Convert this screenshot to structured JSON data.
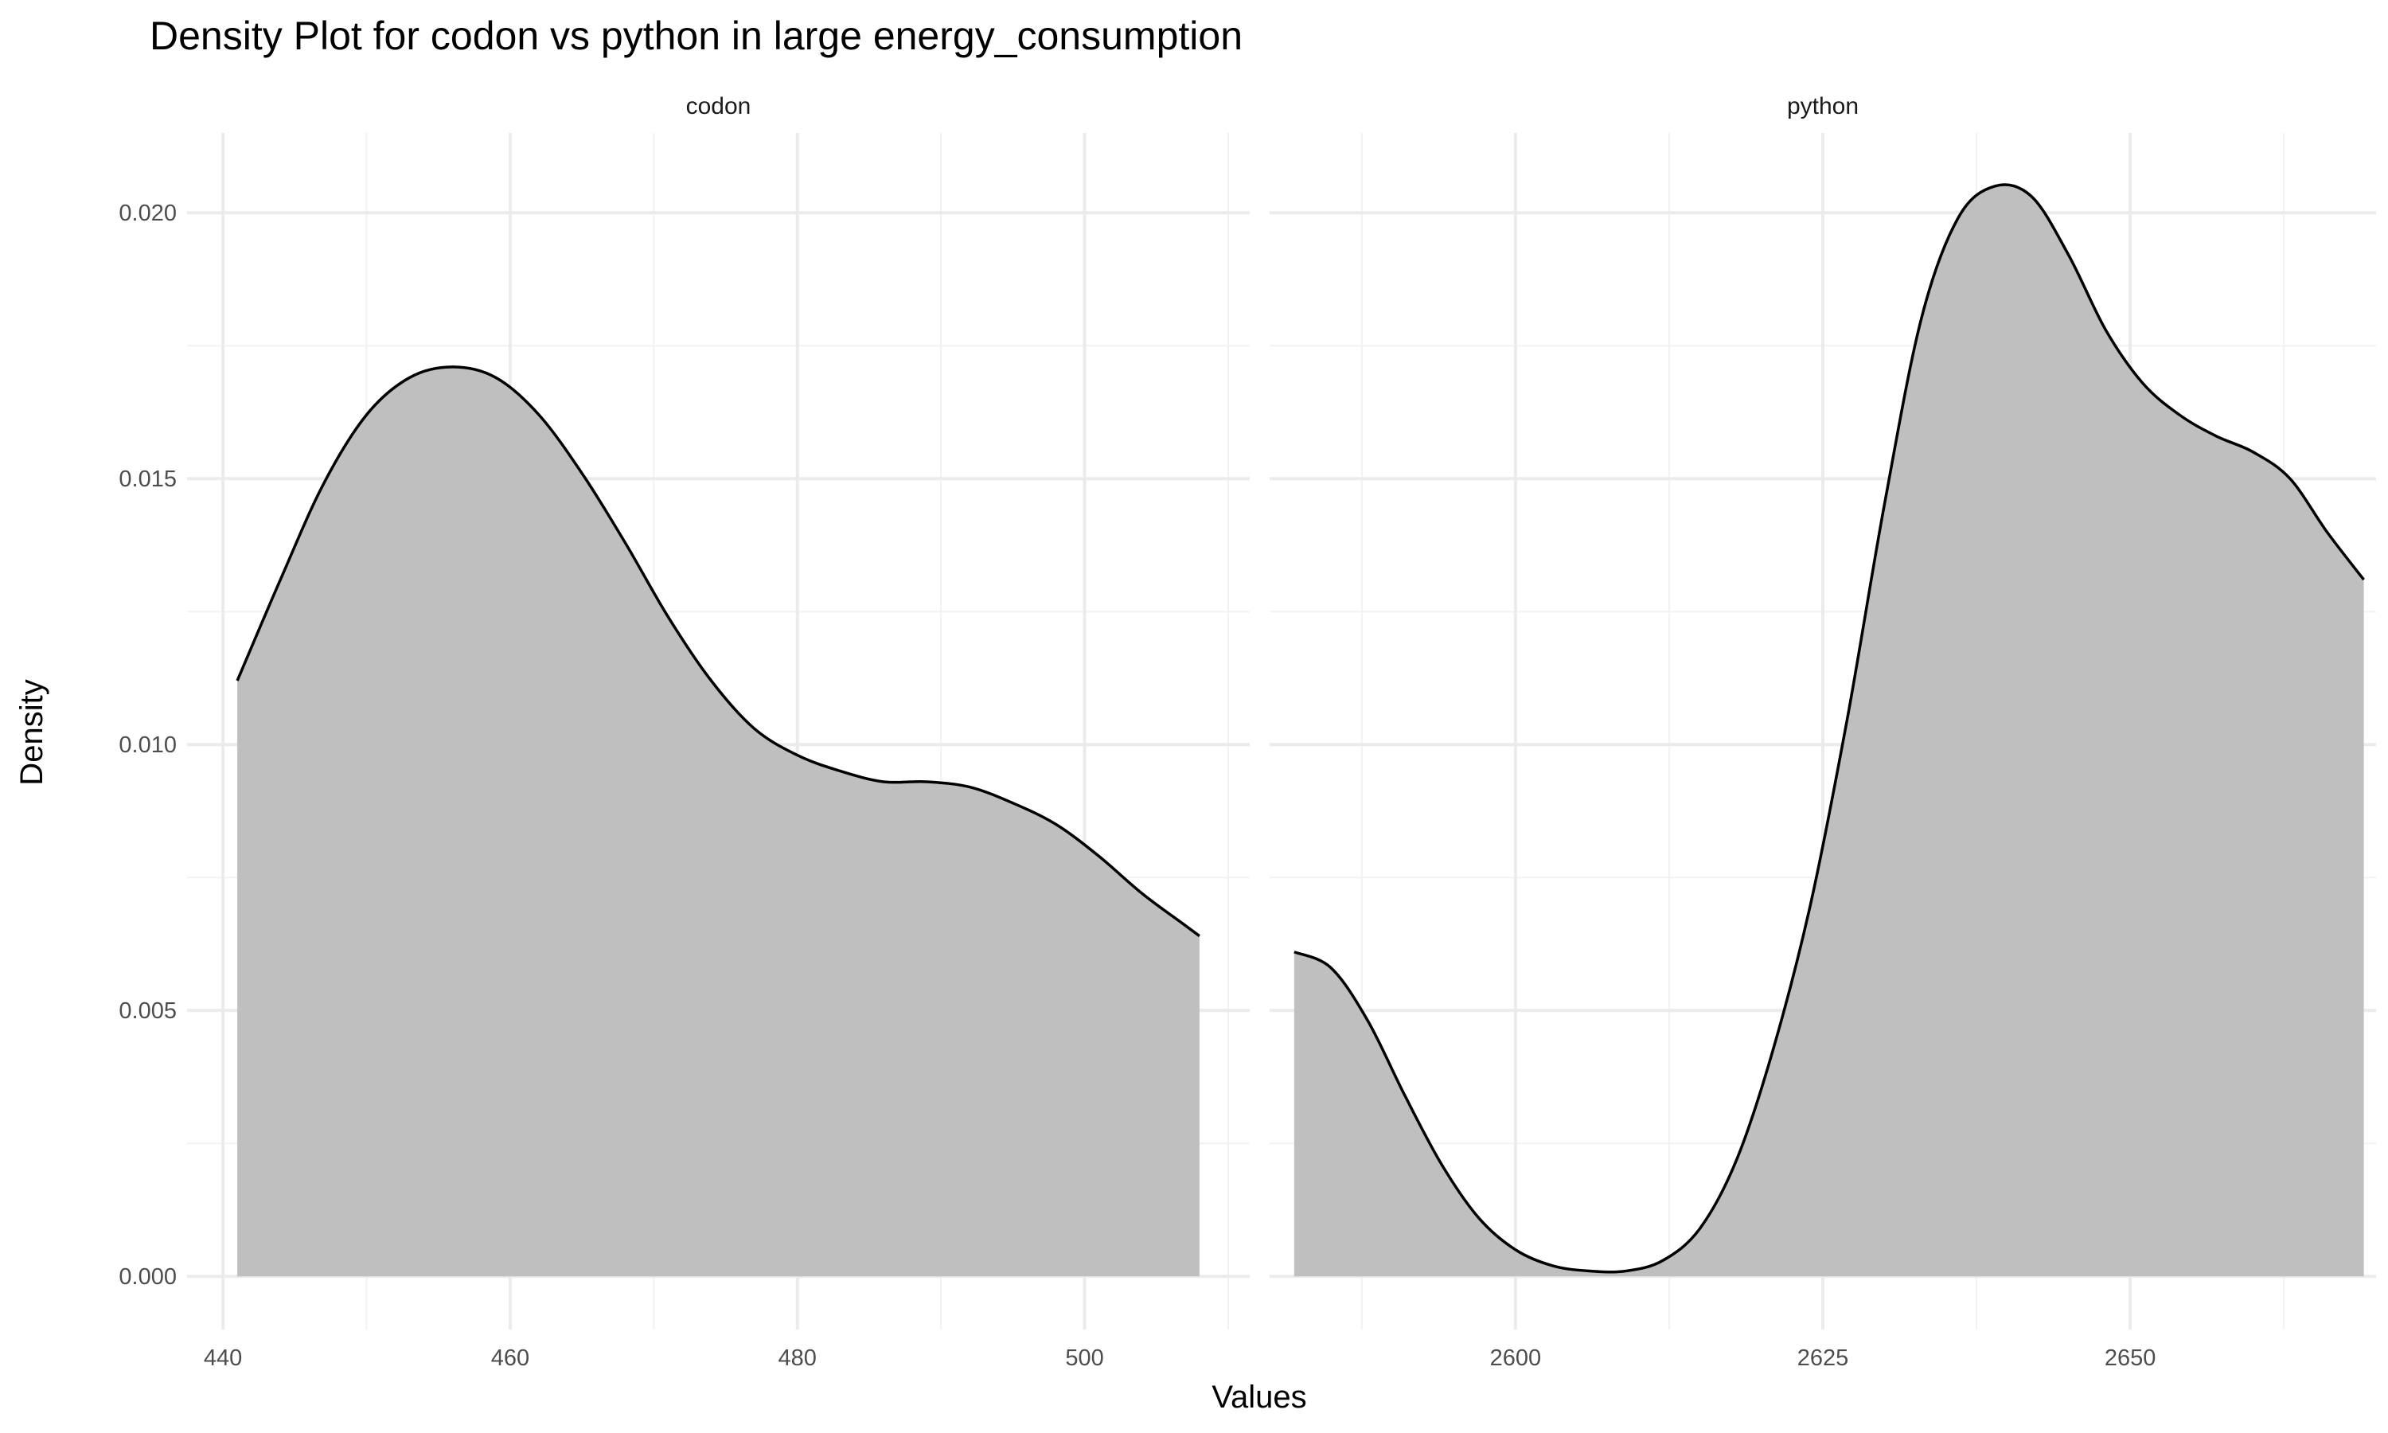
{
  "chart_data": {
    "type": "area",
    "title": "Density Plot for codon vs python in large energy_consumption",
    "xlabel": "Values",
    "ylabel": "Density",
    "y_ticks": [
      0.0,
      0.005,
      0.01,
      0.015,
      0.02
    ],
    "y_tick_labels": [
      "0.000",
      "0.005",
      "0.010",
      "0.015",
      "0.020"
    ],
    "ylim": [
      -0.001,
      0.0215
    ],
    "grid": true,
    "colors": {
      "fill": "#bfbfbf",
      "line": "#000000",
      "grid": "#ebebeb"
    },
    "panels": [
      {
        "name": "codon",
        "xlim": [
          437.5,
          511.5
        ],
        "x_ticks": [
          440,
          460,
          480,
          500
        ],
        "x_tick_labels": [
          "440",
          "460",
          "480",
          "500"
        ],
        "series": [
          {
            "x": [
              441,
              444,
              447,
              450,
              453,
              456,
              459,
              462,
              465,
              468,
              471,
              474,
              477,
              480,
              483,
              486,
              489,
              492,
              495,
              498,
              501,
              504,
              507,
              508
            ],
            "y": [
              0.0112,
              0.0131,
              0.0149,
              0.0162,
              0.0169,
              0.0171,
              0.0169,
              0.0162,
              0.0151,
              0.0138,
              0.0124,
              0.0112,
              0.0103,
              0.0098,
              0.0095,
              0.0093,
              0.0093,
              0.0092,
              0.0089,
              0.0085,
              0.0079,
              0.0072,
              0.0066,
              0.0064
            ]
          }
        ]
      },
      {
        "name": "python",
        "xlim": [
          2580,
          2670
        ],
        "x_ticks": [
          2600,
          2625,
          2650
        ],
        "x_tick_labels": [
          "2600",
          "2625",
          "2650"
        ],
        "series": [
          {
            "x": [
              2582,
              2585,
              2588,
              2591,
              2594,
              2597,
              2600,
              2603,
              2606,
              2609,
              2612,
              2615,
              2618,
              2621,
              2624,
              2627,
              2630,
              2633,
              2636,
              2639,
              2642,
              2645,
              2648,
              2651,
              2654,
              2657,
              2660,
              2663,
              2666,
              2669
            ],
            "y": [
              0.0061,
              0.0058,
              0.0048,
              0.0034,
              0.0021,
              0.0011,
              0.0005,
              0.0002,
              0.0001,
              0.0001,
              0.0003,
              0.0009,
              0.0022,
              0.0043,
              0.007,
              0.0105,
              0.0145,
              0.018,
              0.0199,
              0.0205,
              0.0203,
              0.0192,
              0.0178,
              0.0168,
              0.0162,
              0.0158,
              0.0155,
              0.015,
              0.014,
              0.0131
            ]
          }
        ]
      }
    ]
  }
}
